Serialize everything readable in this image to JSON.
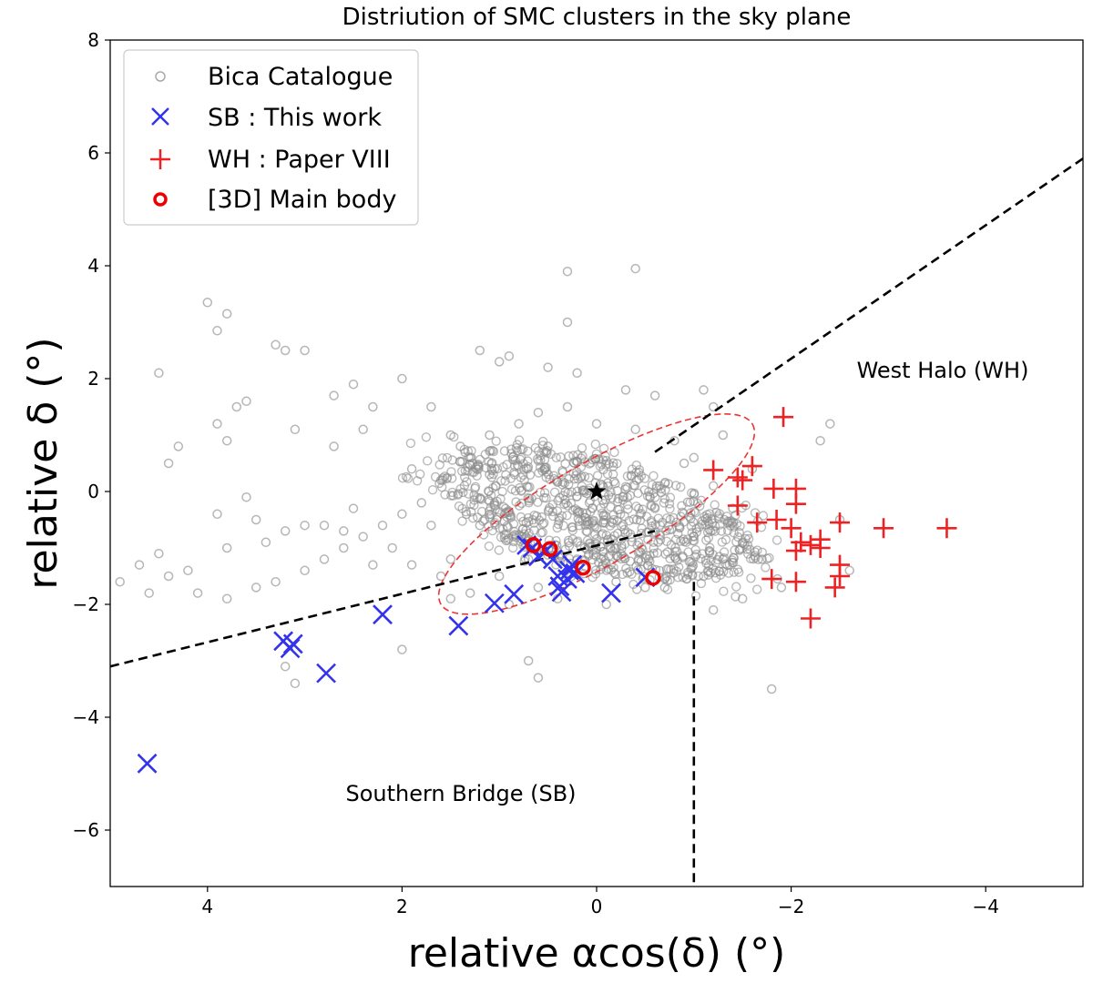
{
  "chart_data": {
    "type": "scatter",
    "title": "Distriution of SMC clusters in the sky plane",
    "xlabel": "relative αcos(δ) (°)",
    "ylabel": "relative δ (°)",
    "xlim": [
      5,
      -5
    ],
    "ylim": [
      -7,
      8
    ],
    "x_ticks": [
      4,
      2,
      0,
      -2,
      -4
    ],
    "x_tick_labels": [
      "4",
      "2",
      "0",
      "−2",
      "−4"
    ],
    "y_ticks": [
      -6,
      -4,
      -2,
      0,
      2,
      4,
      6,
      8
    ],
    "y_tick_labels": [
      "−6",
      "−4",
      "−2",
      "0",
      "2",
      "4",
      "6",
      "8"
    ],
    "grid": false,
    "legend_position": "top-left",
    "legend": [
      {
        "label": "Bica Catalogue",
        "marker": "open-circle",
        "color": "#a9a9a9"
      },
      {
        "label": "SB : This work",
        "marker": "x",
        "color": "#3333ee"
      },
      {
        "label": "WH : Paper VIII",
        "marker": "plus",
        "color": "#ee2222"
      },
      {
        "label": "[3D] Main body",
        "marker": "open-circle-thick",
        "color": "#ee0000"
      }
    ],
    "annotations": [
      {
        "text": "West Halo (WH)",
        "x": -2.5,
        "y": 2.1
      },
      {
        "text": "Southern Bridge (SB)",
        "x": 1.45,
        "y": -5.35
      }
    ],
    "center_star": {
      "x": 0.0,
      "y": 0.0,
      "color": "#000000"
    },
    "ellipse": {
      "cx": 0.0,
      "cy": -0.4,
      "semi_major": 1.85,
      "semi_minor": 0.9,
      "angle_deg": -30,
      "color": "#ee3333",
      "style": "dashed"
    },
    "boundary_lines": [
      {
        "x": [
          5.0,
          -0.6
        ],
        "y": [
          -3.1,
          -0.7
        ],
        "style": "dashed",
        "color": "#000000"
      },
      {
        "x": [
          -0.6,
          -5.0
        ],
        "y": [
          0.7,
          5.9
        ],
        "style": "dashed",
        "color": "#000000"
      },
      {
        "x": [
          -1.0,
          -1.0
        ],
        "y": [
          -1.6,
          -7.0
        ],
        "style": "dashed",
        "color": "#000000"
      }
    ],
    "bica_clusters": [
      [
        4.0,
        3.35
      ],
      [
        3.8,
        3.15
      ],
      [
        3.9,
        2.85
      ],
      [
        4.5,
        2.1
      ],
      [
        3.2,
        2.5
      ],
      [
        3.3,
        2.6
      ],
      [
        3.0,
        2.5
      ],
      [
        2.0,
        2.0
      ],
      [
        2.5,
        1.9
      ],
      [
        2.7,
        1.7
      ],
      [
        3.6,
        1.6
      ],
      [
        3.7,
        1.5
      ],
      [
        3.9,
        1.2
      ],
      [
        4.4,
        0.5
      ],
      [
        3.8,
        0.9
      ],
      [
        4.3,
        0.8
      ],
      [
        3.1,
        1.1
      ],
      [
        2.3,
        1.5
      ],
      [
        2.4,
        1.1
      ],
      [
        2.7,
        0.8
      ],
      [
        3.9,
        -0.4
      ],
      [
        3.6,
        -0.1
      ],
      [
        3.5,
        -0.5
      ],
      [
        3.2,
        -0.7
      ],
      [
        3.0,
        -0.6
      ],
      [
        2.8,
        -0.6
      ],
      [
        2.6,
        -0.7
      ],
      [
        3.4,
        -0.9
      ],
      [
        3.8,
        -1.0
      ],
      [
        4.2,
        -1.4
      ],
      [
        4.5,
        -1.1
      ],
      [
        4.7,
        -1.3
      ],
      [
        4.9,
        -1.6
      ],
      [
        4.6,
        -1.8
      ],
      [
        4.4,
        -1.5
      ],
      [
        4.1,
        -1.8
      ],
      [
        3.8,
        -1.9
      ],
      [
        3.5,
        -1.7
      ],
      [
        3.3,
        -1.6
      ],
      [
        3.0,
        -1.4
      ],
      [
        2.8,
        -1.2
      ],
      [
        2.6,
        -1.0
      ],
      [
        2.4,
        -0.8
      ],
      [
        2.2,
        -0.6
      ],
      [
        2.0,
        -0.4
      ],
      [
        1.8,
        -0.2
      ],
      [
        2.1,
        -1.0
      ],
      [
        1.9,
        -1.3
      ],
      [
        1.6,
        -1.5
      ],
      [
        1.3,
        -1.8
      ],
      [
        3.2,
        -3.1
      ],
      [
        3.1,
        -3.4
      ],
      [
        2.0,
        -2.8
      ],
      [
        0.7,
        -3.0
      ],
      [
        0.6,
        -3.3
      ],
      [
        -1.8,
        -3.5
      ],
      [
        -2.3,
        0.9
      ],
      [
        -2.4,
        1.2
      ],
      [
        -2.5,
        -0.5
      ],
      [
        -2.6,
        -1.4
      ],
      [
        -1.1,
        1.8
      ],
      [
        -1.2,
        1.5
      ],
      [
        -1.3,
        1.0
      ],
      [
        -1.6,
        0.4
      ],
      [
        -1.4,
        -0.3
      ],
      [
        -1.5,
        -0.9
      ],
      [
        -1.7,
        -1.2
      ],
      [
        -1.9,
        -1.7
      ],
      [
        -1.5,
        -1.9
      ],
      [
        -1.2,
        -2.1
      ],
      [
        0.3,
        3.9
      ],
      [
        -0.4,
        3.95
      ],
      [
        0.3,
        3.0
      ],
      [
        0.9,
        2.4
      ],
      [
        1.0,
        2.3
      ],
      [
        1.2,
        2.5
      ],
      [
        0.5,
        2.2
      ],
      [
        0.2,
        2.1
      ],
      [
        -0.3,
        1.8
      ],
      [
        -0.6,
        1.7
      ],
      [
        1.5,
        1.0
      ],
      [
        1.7,
        1.5
      ],
      [
        1.4,
        0.8
      ],
      [
        1.2,
        -0.6
      ],
      [
        1.5,
        -1.2
      ],
      [
        1.0,
        -1.5
      ],
      [
        0.6,
        -1.7
      ],
      [
        0.3,
        -1.5
      ],
      [
        -0.2,
        -1.6
      ],
      [
        -0.5,
        -1.7
      ],
      [
        1.6,
        0.2
      ],
      [
        1.3,
        0.6
      ],
      [
        1.1,
        1.0
      ],
      [
        0.8,
        1.2
      ],
      [
        0.6,
        1.4
      ],
      [
        0.3,
        1.5
      ],
      [
        0.0,
        1.2
      ],
      [
        -0.4,
        1.1
      ],
      [
        -0.8,
        0.9
      ],
      [
        -1.0,
        0.6
      ],
      [
        1.5,
        -1.9
      ],
      [
        0.9,
        -2.0
      ],
      [
        0.4,
        -1.9
      ],
      [
        -0.1,
        -2.0
      ],
      [
        -0.7,
        -1.7
      ],
      [
        -1.1,
        -1.5
      ],
      [
        -1.3,
        -1.2
      ],
      [
        -1.0,
        -0.8
      ],
      [
        0.7,
        -1.2
      ],
      [
        0.2,
        -1.2
      ],
      [
        2.3,
        -1.3
      ],
      [
        2.5,
        -0.3
      ],
      [
        1.9,
        0.4
      ],
      [
        1.7,
        -0.6
      ],
      [
        1.1,
        0.3
      ],
      [
        -0.9,
        0.5
      ],
      [
        -1.2,
        0.1
      ],
      [
        -0.2,
        -1.0
      ],
      [
        0.5,
        0.8
      ],
      [
        -0.6,
        -0.3
      ]
    ],
    "sb_this_work": [
      [
        4.62,
        -4.82
      ],
      [
        3.22,
        -2.65
      ],
      [
        3.15,
        -2.78
      ],
      [
        3.12,
        -2.7
      ],
      [
        2.78,
        -3.22
      ],
      [
        2.2,
        -2.18
      ],
      [
        1.42,
        -2.38
      ],
      [
        1.05,
        -1.98
      ],
      [
        0.85,
        -1.82
      ],
      [
        0.72,
        -0.95
      ],
      [
        0.66,
        -1.0
      ],
      [
        0.6,
        -1.15
      ],
      [
        0.52,
        -1.05
      ],
      [
        0.45,
        -1.2
      ],
      [
        0.4,
        -1.5
      ],
      [
        0.38,
        -1.68
      ],
      [
        0.36,
        -1.78
      ],
      [
        0.3,
        -1.55
      ],
      [
        0.28,
        -1.4
      ],
      [
        0.25,
        -1.3
      ],
      [
        0.22,
        -1.45
      ],
      [
        -0.15,
        -1.8
      ],
      [
        -0.5,
        -1.52
      ]
    ],
    "wh_paper_viii": [
      [
        -1.92,
        1.32
      ],
      [
        -1.2,
        0.38
      ],
      [
        -1.45,
        0.25
      ],
      [
        -1.5,
        0.2
      ],
      [
        -1.6,
        0.45
      ],
      [
        -1.82,
        0.05
      ],
      [
        -2.05,
        0.05
      ],
      [
        -2.05,
        -0.22
      ],
      [
        -1.45,
        -0.25
      ],
      [
        -1.65,
        -0.55
      ],
      [
        -1.85,
        -0.5
      ],
      [
        -2.0,
        -0.65
      ],
      [
        -2.5,
        -0.55
      ],
      [
        -2.95,
        -0.65
      ],
      [
        -3.6,
        -0.65
      ],
      [
        -2.1,
        -0.9
      ],
      [
        -2.2,
        -0.95
      ],
      [
        -2.3,
        -0.85
      ],
      [
        -2.05,
        -1.05
      ],
      [
        -2.3,
        -1.0
      ],
      [
        -1.8,
        -1.55
      ],
      [
        -2.05,
        -1.6
      ],
      [
        -2.5,
        -1.3
      ],
      [
        -2.5,
        -1.5
      ],
      [
        -2.45,
        -1.7
      ],
      [
        -2.2,
        -2.25
      ]
    ],
    "main_body_3d": [
      [
        0.65,
        -0.95
      ],
      [
        0.48,
        -1.02
      ],
      [
        0.14,
        -1.35
      ],
      [
        -0.58,
        -1.53
      ]
    ]
  }
}
